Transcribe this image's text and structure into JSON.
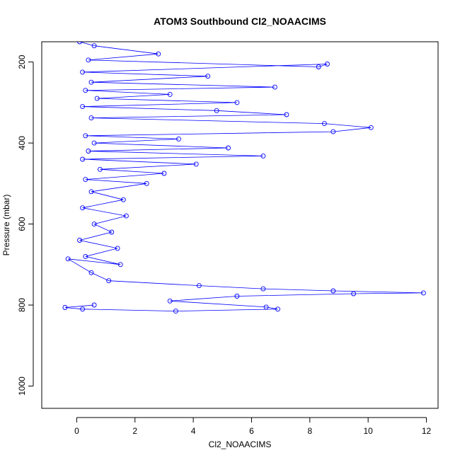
{
  "chart_data": {
    "type": "scatter",
    "title": "ATOM3 Southbound Cl2_NOAACIMS",
    "xlabel": "Cl2_NOAACIMS",
    "ylabel": "Pressure (mbar)",
    "xlim": [
      -1.2,
      12.4
    ],
    "ylim": [
      1055,
      150
    ],
    "y_reversed": true,
    "x_ticks": [
      "0",
      "2",
      "4",
      "6",
      "8",
      "10",
      "12"
    ],
    "y_ticks": [
      "200",
      "400",
      "600",
      "800",
      "1000"
    ],
    "grid": false,
    "legend": "none",
    "series": [
      {
        "marker": "open-circle",
        "lines": true,
        "color": "#0000ff",
        "points": [
          [
            0.1,
            150
          ],
          [
            0.6,
            160
          ],
          [
            2.8,
            180
          ],
          [
            0.4,
            195
          ],
          [
            8.3,
            212
          ],
          [
            8.6,
            205
          ],
          [
            0.2,
            225
          ],
          [
            4.5,
            235
          ],
          [
            0.5,
            250
          ],
          [
            6.8,
            262
          ],
          [
            0.3,
            270
          ],
          [
            3.2,
            280
          ],
          [
            0.7,
            290
          ],
          [
            5.5,
            300
          ],
          [
            0.2,
            310
          ],
          [
            4.8,
            320
          ],
          [
            7.2,
            330
          ],
          [
            0.5,
            338
          ],
          [
            8.5,
            352
          ],
          [
            10.1,
            362
          ],
          [
            8.8,
            372
          ],
          [
            0.3,
            382
          ],
          [
            3.5,
            390
          ],
          [
            0.6,
            400
          ],
          [
            5.2,
            412
          ],
          [
            0.4,
            420
          ],
          [
            6.4,
            432
          ],
          [
            0.2,
            440
          ],
          [
            4.1,
            452
          ],
          [
            0.8,
            465
          ],
          [
            3.0,
            475
          ],
          [
            0.3,
            490
          ],
          [
            2.4,
            500
          ],
          [
            0.5,
            520
          ],
          [
            1.6,
            540
          ],
          [
            0.2,
            560
          ],
          [
            1.7,
            580
          ],
          [
            0.6,
            600
          ],
          [
            1.2,
            620
          ],
          [
            0.1,
            640
          ],
          [
            1.4,
            660
          ],
          [
            0.3,
            680
          ],
          [
            1.5,
            700
          ],
          [
            -0.3,
            686
          ],
          [
            0.5,
            720
          ],
          [
            1.1,
            740
          ],
          [
            4.2,
            752
          ],
          [
            6.4,
            760
          ],
          [
            8.8,
            765
          ],
          [
            11.9,
            770
          ],
          [
            9.5,
            772
          ],
          [
            5.5,
            778
          ],
          [
            3.2,
            790
          ],
          [
            6.5,
            805
          ],
          [
            6.9,
            810
          ],
          [
            3.4,
            815
          ],
          [
            0.2,
            810
          ],
          [
            -0.4,
            806
          ],
          [
            0.6,
            800
          ]
        ]
      }
    ]
  }
}
